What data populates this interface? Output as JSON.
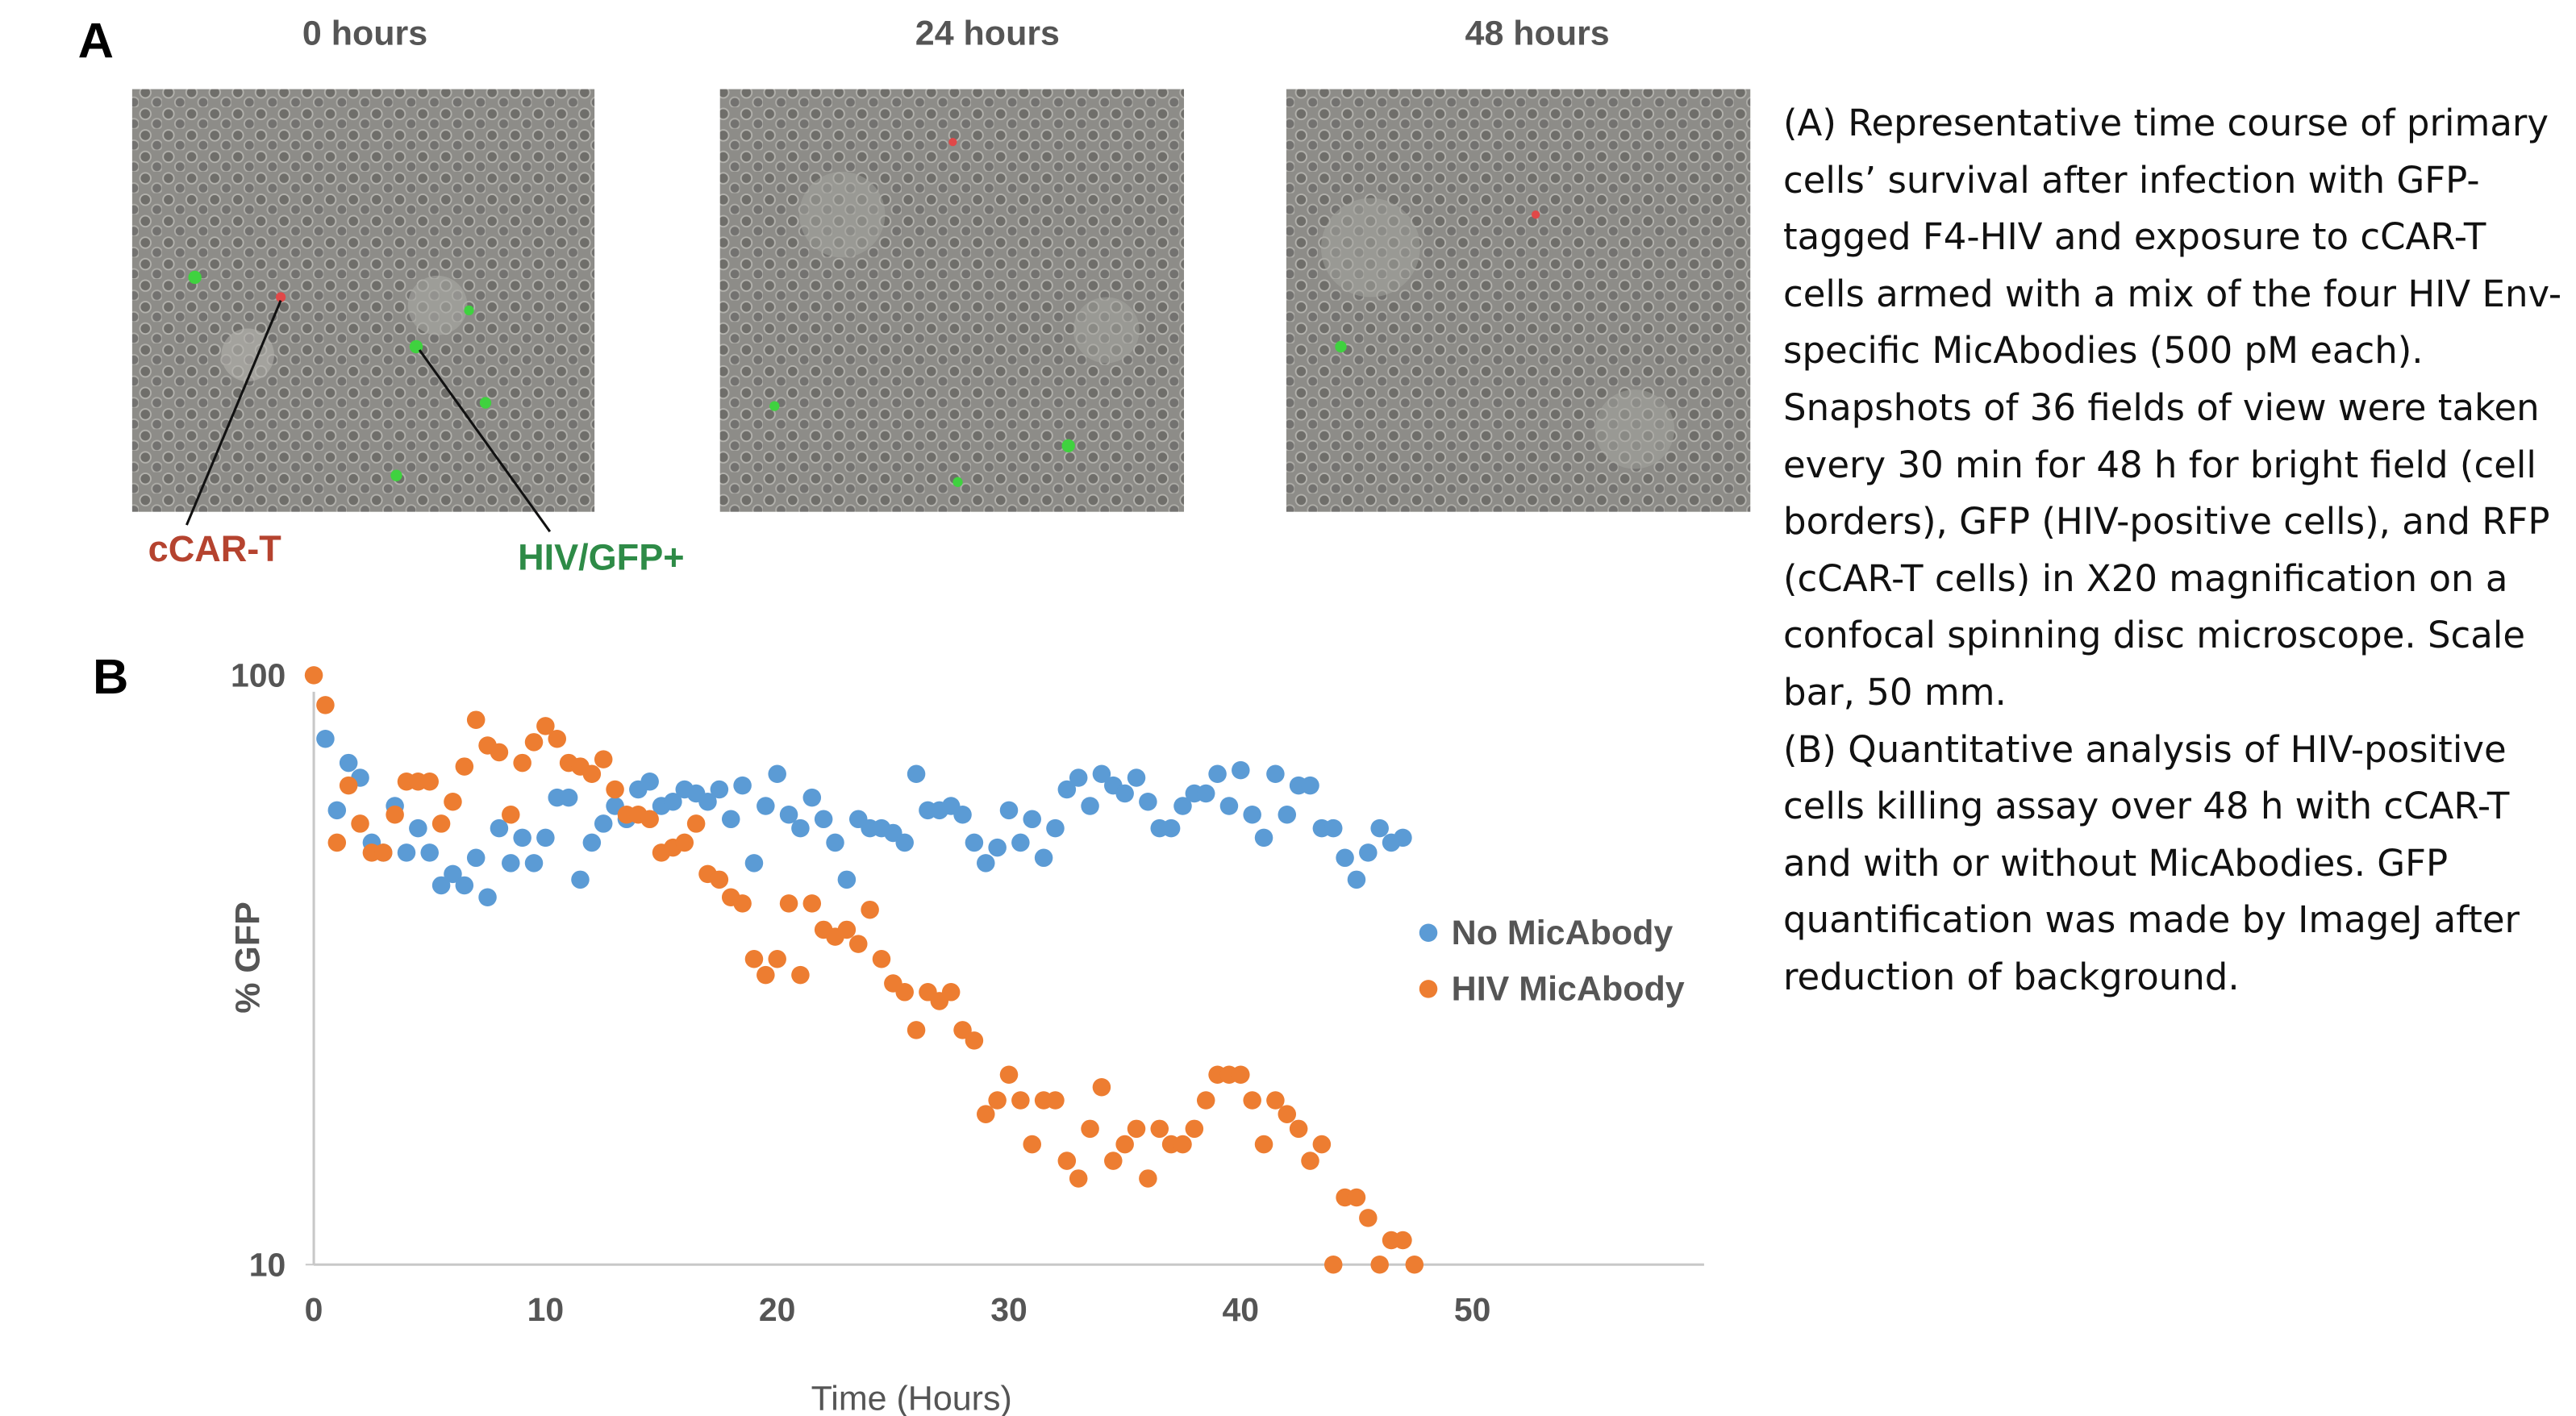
{
  "panel_a": {
    "label": "A",
    "images": [
      {
        "title": "0 hours"
      },
      {
        "title": "24 hours"
      },
      {
        "title": "48 hours"
      }
    ],
    "annotations": {
      "car_t": "cCAR-T",
      "hiv_gfp": "HIV/GFP+"
    }
  },
  "panel_b": {
    "label": "B"
  },
  "caption": [
    "(A) Representative time course of primary cells’ survival after infection with GFP-tagged F4-HIV and exposure to cCAR-T cells armed with a mix of the four HIV Env-specific MicAbodies (500 pM each). Snapshots of 36 fields of view were taken every 30 min for 48 h for bright field (cell borders), GFP (HIV-positive cells), and RFP (cCAR-T cells) in X20 magnification on a confocal spinning disc microscope. Scale bar, 50 mm.",
    "(B) Quantitative analysis of HIV-positive cells killing assay over 48 h with cCAR-T and with or without MicAbodies. GFP quantification was made by ImageJ after reduction of background."
  ],
  "chart_data": {
    "type": "scatter",
    "x_label": "Time (Hours)",
    "y_label": "% GFP",
    "xlim": [
      0,
      60
    ],
    "xticks": [
      0,
      10,
      20,
      30,
      40,
      50
    ],
    "ylim": [
      10,
      100
    ],
    "yticks": [
      10,
      100
    ],
    "y_log": true,
    "grid": false,
    "legend_position": "right",
    "series": [
      {
        "name": "No MicAbody",
        "color": "#5b9bd5",
        "x": [
          0.5,
          1,
          1.5,
          2,
          2.5,
          3,
          3.5,
          4,
          4.5,
          5,
          5.5,
          6,
          6.5,
          7,
          7.5,
          8,
          8.5,
          9,
          9.5,
          10,
          10.5,
          11,
          11.5,
          12,
          12.5,
          13,
          13.5,
          14,
          14.5,
          15,
          15.5,
          16,
          16.5,
          17,
          17.5,
          18,
          18.5,
          19,
          19.5,
          20,
          20.5,
          21,
          21.5,
          22,
          22.5,
          23,
          23.5,
          24,
          24.5,
          25,
          25.5,
          26,
          26.5,
          27,
          27.5,
          28,
          28.5,
          29,
          29.5,
          30,
          30.5,
          31,
          31.5,
          32,
          32.5,
          33,
          33.5,
          34,
          34.5,
          35,
          35.5,
          36,
          36.5,
          37,
          37.5,
          38,
          38.5,
          39,
          39.5,
          40,
          40.5,
          41,
          41.5,
          42,
          42.5,
          43,
          43.5,
          44,
          44.5,
          45,
          45.5,
          46,
          46.5,
          47
        ],
        "values": [
          78,
          59,
          71,
          67,
          52,
          50,
          60,
          50,
          55,
          50,
          44,
          46,
          44,
          49,
          42,
          55,
          48,
          53,
          48,
          53,
          62,
          62,
          45,
          52,
          56,
          60,
          57,
          64,
          66,
          60,
          61,
          64,
          63,
          61,
          64,
          57,
          65,
          48,
          60,
          68,
          58,
          55,
          62,
          57,
          52,
          45,
          57,
          55,
          55,
          54,
          52,
          68,
          59,
          59,
          60,
          58,
          52,
          48,
          51,
          59,
          52,
          57,
          49,
          55,
          64,
          67,
          60,
          68,
          65,
          63,
          67,
          61,
          55,
          55,
          60,
          63,
          63,
          68,
          60,
          69,
          58,
          53,
          68,
          58,
          65,
          65,
          55,
          55,
          49,
          45,
          50,
          55,
          52,
          53
        ]
      },
      {
        "name": "HIV MicAbody",
        "color": "#ed7d31",
        "x": [
          0,
          0.5,
          1,
          1.5,
          2,
          2.5,
          3,
          3.5,
          4,
          4.5,
          5,
          5.5,
          6,
          6.5,
          7,
          7.5,
          8,
          8.5,
          9,
          9.5,
          10,
          10.5,
          11,
          11.5,
          12,
          12.5,
          13,
          13.5,
          14,
          14.5,
          15,
          15.5,
          16,
          16.5,
          17,
          17.5,
          18,
          18.5,
          19,
          19.5,
          20,
          20.5,
          21,
          21.5,
          22,
          22.5,
          23,
          23.5,
          24,
          24.5,
          25,
          25.5,
          26,
          26.5,
          27,
          27.5,
          28,
          28.5,
          29,
          29.5,
          30,
          30.5,
          31,
          31.5,
          32,
          32.5,
          33,
          33.5,
          34,
          34.5,
          35,
          35.5,
          36,
          36.5,
          37,
          37.5,
          38,
          38.5,
          39,
          39.5,
          40,
          40.5,
          41,
          41.5,
          42,
          42.5,
          43,
          43.5,
          44,
          44.5,
          45,
          45.5,
          46,
          46.5,
          47,
          47.5
        ],
        "values": [
          100,
          89,
          52,
          65,
          56,
          50,
          50,
          58,
          66,
          66,
          66,
          56,
          61,
          70,
          84,
          76,
          74,
          58,
          71,
          77,
          82,
          78,
          71,
          70,
          68,
          72,
          64,
          58,
          58,
          57,
          50,
          51,
          52,
          56,
          46,
          45,
          42,
          41,
          33,
          31,
          33,
          41,
          31,
          41,
          37,
          36,
          37,
          35,
          40,
          33,
          30,
          29,
          25,
          29,
          28,
          29,
          25,
          24,
          18,
          19,
          21,
          19,
          16,
          19,
          19,
          15,
          14,
          17,
          20,
          15,
          16,
          17,
          14,
          17,
          16,
          16,
          17,
          19,
          21,
          21,
          21,
          19,
          16,
          19,
          18,
          17,
          15,
          16,
          10,
          13,
          13,
          12,
          10,
          11,
          11,
          10
        ]
      }
    ]
  }
}
